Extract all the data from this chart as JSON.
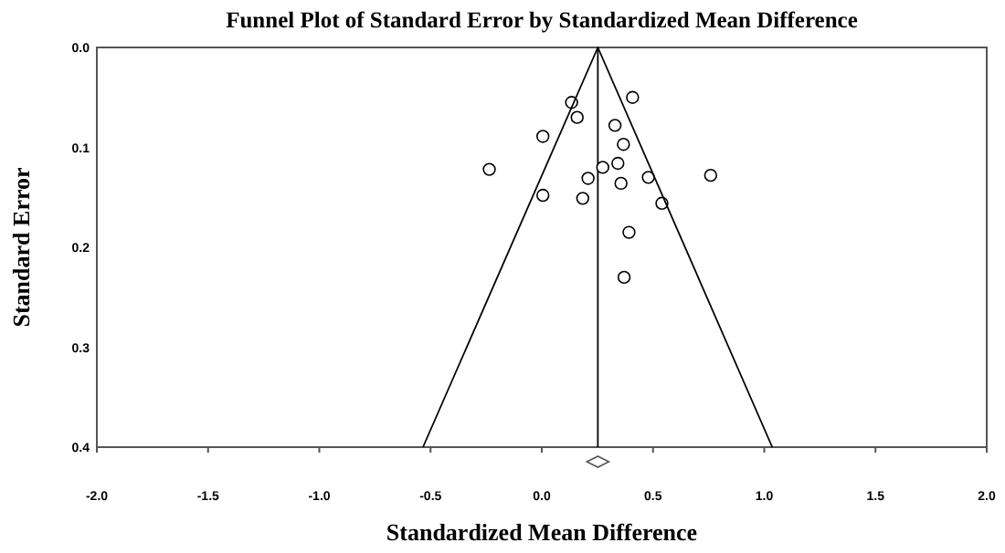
{
  "chart_data": {
    "type": "scatter",
    "title": "Funnel Plot of Standard Error by Standardized Mean Difference",
    "xlabel": "Standardized Mean Difference",
    "ylabel": "Standard Error",
    "xlim": [
      -2,
      2
    ],
    "xticks": [
      {
        "value": -2,
        "label": "-2.0"
      },
      {
        "value": -1.5,
        "label": "-1.5"
      },
      {
        "value": -1,
        "label": "-1.0"
      },
      {
        "value": -0.5,
        "label": "-0.5"
      },
      {
        "value": 0,
        "label": "0.0"
      },
      {
        "value": 0.5,
        "label": "0.5"
      },
      {
        "value": 1,
        "label": "1.0"
      },
      {
        "value": 1.5,
        "label": "1.5"
      },
      {
        "value": 2,
        "label": "2.0"
      }
    ],
    "ylim": [
      0.4,
      0
    ],
    "yticks": [
      {
        "value": 0,
        "label": "0.0"
      },
      {
        "value": 0.1,
        "label": "0.1"
      },
      {
        "value": 0.2,
        "label": "0.2"
      },
      {
        "value": 0.3,
        "label": "0.3"
      },
      {
        "value": 0.4,
        "label": "0.4"
      }
    ],
    "grid": false,
    "marker": "circle",
    "series": [
      {
        "color": "#000000",
        "x": [
          0.134,
          0.408,
          0.159,
          0.329,
          0.005,
          0.367,
          -0.236,
          0.274,
          0.342,
          0.208,
          0.356,
          0.479,
          0.759,
          0.005,
          0.184,
          0.54,
          0.392,
          0.37
        ],
        "values": [
          0.055,
          0.05,
          0.07,
          0.078,
          0.089,
          0.097,
          0.122,
          0.12,
          0.116,
          0.131,
          0.136,
          0.13,
          0.128,
          0.148,
          0.151,
          0.156,
          0.185,
          0.23
        ]
      },
      {
        "type": "line",
        "color": "#000000",
        "marker": "none",
        "x": [
          -0.534,
          0.252,
          1.036
        ],
        "values": [
          0.4,
          0,
          0.4
        ]
      }
    ],
    "ref_lines": [
      {
        "axis": "x",
        "value": 0.252,
        "color": "#000000"
      }
    ]
  }
}
